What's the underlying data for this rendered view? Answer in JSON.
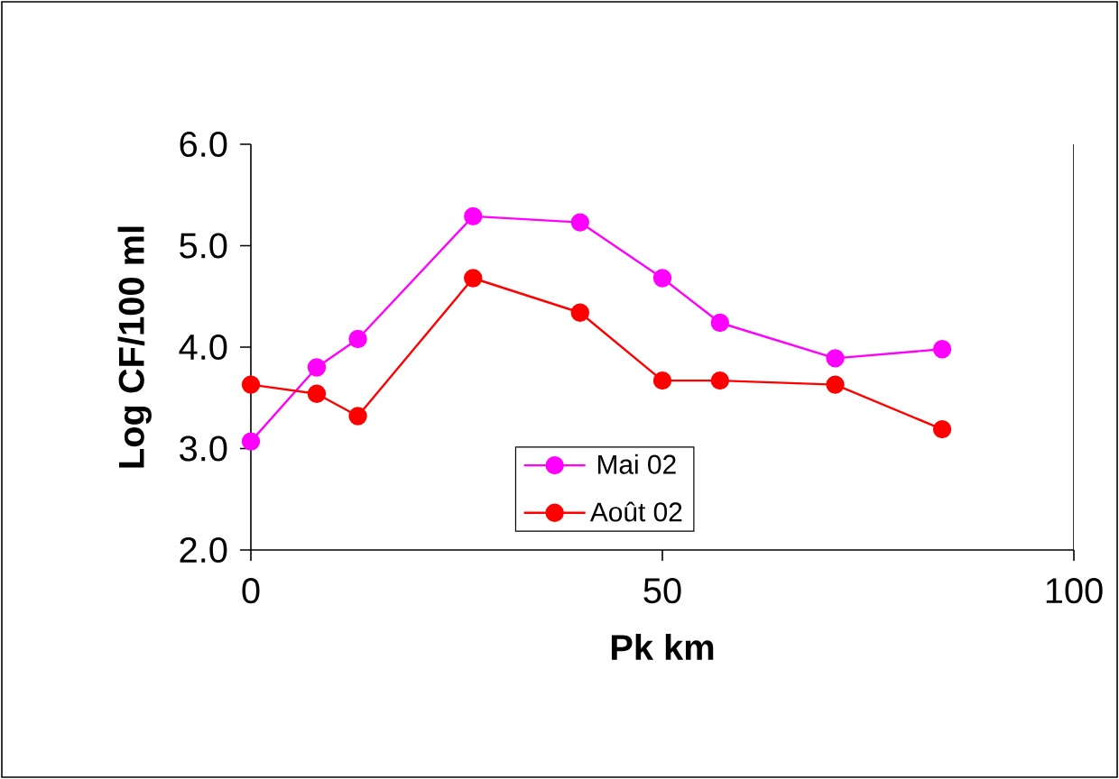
{
  "chart_data": {
    "type": "line",
    "xlabel": "Pk km",
    "ylabel": "Log CF/100 ml",
    "x": [
      0,
      8,
      13,
      27,
      40,
      50,
      57,
      71,
      84
    ],
    "series": [
      {
        "name": "Mai 02",
        "color": "#ff00ff",
        "values": [
          3.07,
          3.8,
          4.08,
          5.29,
          5.23,
          4.68,
          4.24,
          3.89,
          3.98
        ]
      },
      {
        "name": "Août 02",
        "color": "#ff0000",
        "values": [
          3.63,
          3.54,
          3.32,
          4.68,
          4.34,
          3.67,
          3.67,
          3.63,
          3.19
        ]
      }
    ],
    "xlim": [
      0,
      100
    ],
    "xticks": [
      0,
      50,
      100
    ],
    "ylim": [
      2,
      6
    ],
    "yticks": [
      {
        "value": 2,
        "label": "2.0"
      },
      {
        "value": 3,
        "label": "3.0"
      },
      {
        "value": 4,
        "label": "4.0"
      },
      {
        "value": 5,
        "label": "5.0"
      },
      {
        "value": 6,
        "label": "6.0"
      }
    ],
    "grid": false,
    "legend": "bottom",
    "marker": "circle",
    "line_style": "solid"
  }
}
